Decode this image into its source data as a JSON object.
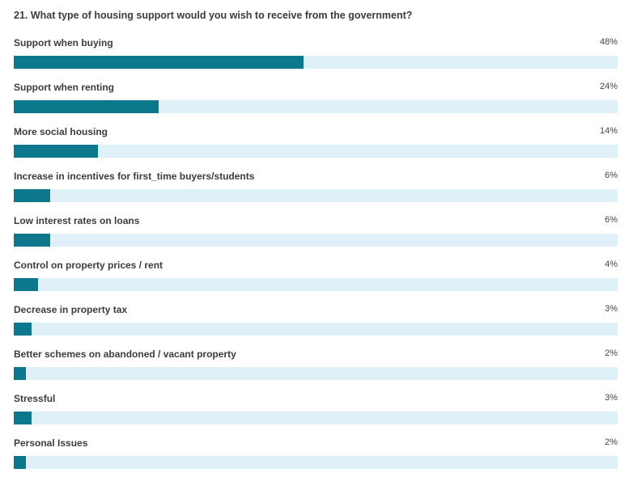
{
  "chart_data": {
    "type": "bar",
    "orientation": "horizontal",
    "title": "21. What type of housing support would you wish to receive from the government?",
    "categories": [
      "Support when buying",
      "Support when renting",
      "More social housing",
      "Increase in incentives for first_time buyers/students",
      "Low interest rates on loans",
      "Control on property prices / rent",
      "Decrease in property tax",
      "Better schemes on abandoned / vacant property",
      "Stressful",
      "Personal Issues"
    ],
    "values": [
      48,
      24,
      14,
      6,
      6,
      4,
      3,
      2,
      3,
      2
    ],
    "value_labels": [
      "48%",
      "24%",
      "14%",
      "6%",
      "6%",
      "4%",
      "3%",
      "2%",
      "3%",
      "2%"
    ],
    "xlim": [
      0,
      100
    ],
    "grid": false,
    "legend": "none"
  },
  "colors": {
    "bar": "#0d788c",
    "track": "#dff0f9",
    "text": "#3c3c3c"
  }
}
